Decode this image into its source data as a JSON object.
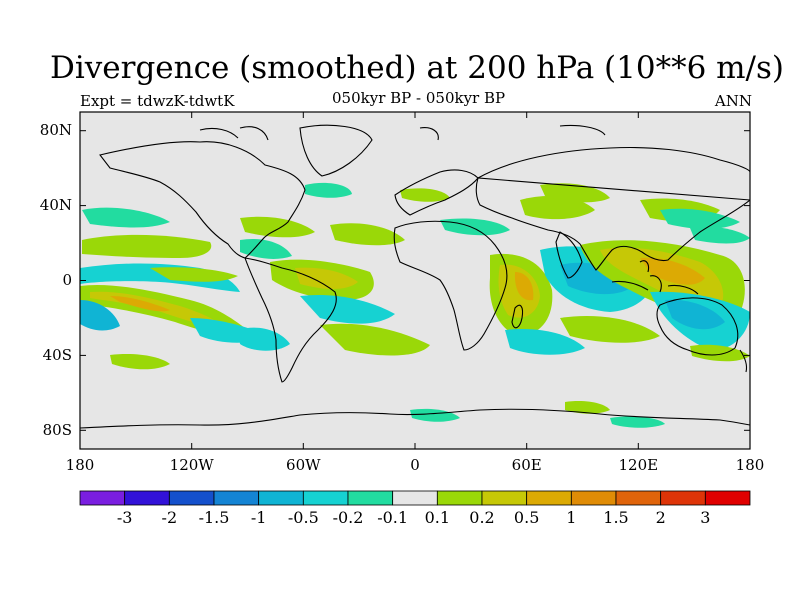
{
  "header": {
    "title": "Divergence (smoothed) at 200 hPa (10**6 m/s)",
    "experiment": "Expt = tdwzK-tdwtK",
    "period": "050kyr BP - 050kyr BP",
    "season": "ANN"
  },
  "map": {
    "background": "#e6e6e6",
    "lat_labels": [
      "80N",
      "40N",
      "0",
      "40S",
      "80S"
    ],
    "lon_labels": [
      "180",
      "120W",
      "60W",
      "0",
      "60E",
      "120E",
      "180"
    ]
  },
  "colorbar": {
    "colors": [
      "#7a1ee0",
      "#3212d8",
      "#1450cc",
      "#1484d4",
      "#10b4d4",
      "#16d2d2",
      "#22dca0",
      "#e6e6e6",
      "#9ad808",
      "#c6c806",
      "#dcaa04",
      "#e08c06",
      "#e0640a",
      "#de3408",
      "#e00000"
    ],
    "labels": [
      "-3",
      "-2",
      "-1.5",
      "-1",
      "-0.5",
      "-0.2",
      "-0.1",
      "0.1",
      "0.2",
      "0.5",
      "1",
      "1.5",
      "2",
      "3"
    ]
  }
}
